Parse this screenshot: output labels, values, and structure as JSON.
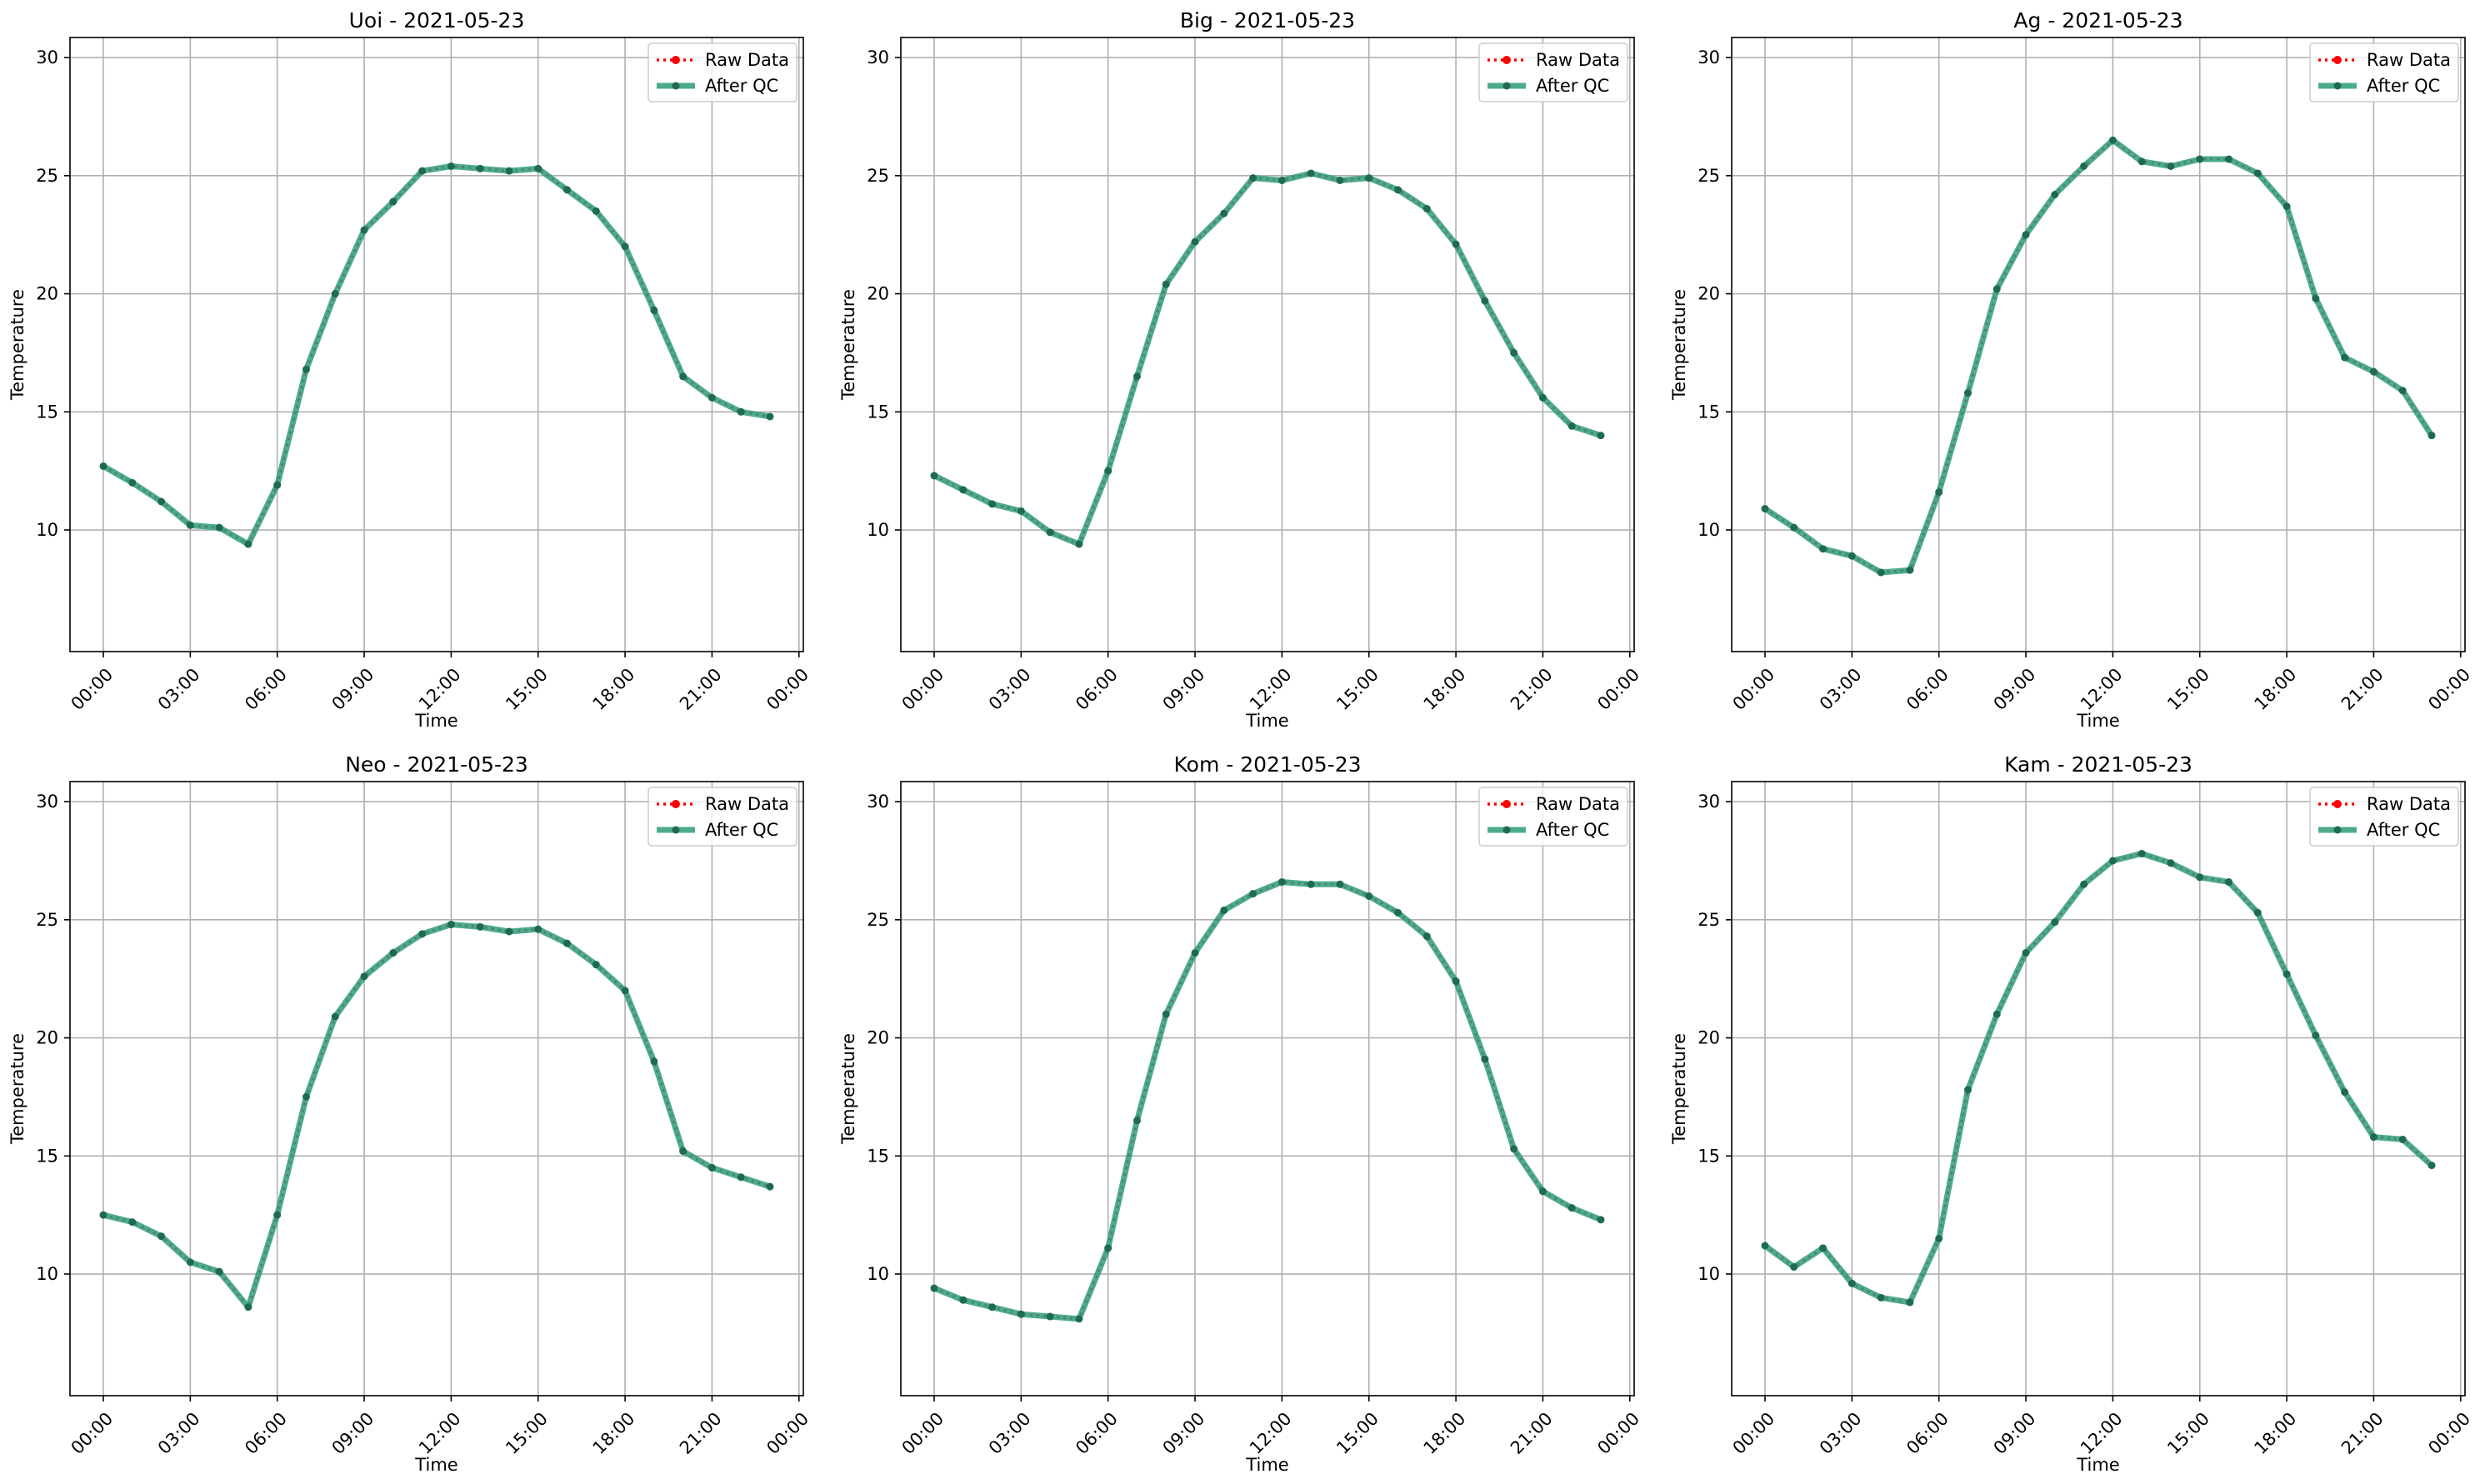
{
  "figure": {
    "background": "#ffffff"
  },
  "style": {
    "raw_color": "#ff0000",
    "qc_color": "#2e9c77",
    "qc_marker_color": "#1f6b52",
    "grid_color": "#b0b0b0",
    "axis_color": "#000000"
  },
  "chart_data": [
    {
      "type": "line",
      "title": "Uoi - 2021-05-23",
      "xlabel": "Time",
      "ylabel": "Temperature",
      "xlim": [
        -1.15,
        24.15
      ],
      "ylim": [
        4.85,
        30.85
      ],
      "xticks": [
        0,
        3,
        6,
        9,
        12,
        15,
        18,
        21,
        24
      ],
      "xtick_labels": [
        "00:00",
        "03:00",
        "06:00",
        "09:00",
        "12:00",
        "15:00",
        "18:00",
        "21:00",
        "00:00"
      ],
      "yticks": [
        10,
        15,
        20,
        25,
        30
      ],
      "ytick_labels": [
        "10",
        "15",
        "20",
        "25",
        "30"
      ],
      "grid": true,
      "legend": {
        "position": "top-right",
        "entries": [
          "Raw Data",
          "After QC"
        ]
      },
      "x": [
        0,
        1,
        2,
        3,
        4,
        5,
        6,
        7,
        8,
        9,
        10,
        11,
        12,
        13,
        14,
        15,
        16,
        17,
        18,
        19,
        20,
        21,
        22,
        23
      ],
      "series": [
        {
          "name": "Raw Data",
          "values": [
            12.7,
            12.0,
            11.2,
            10.2,
            10.1,
            9.4,
            11.9,
            16.8,
            20.0,
            22.7,
            23.9,
            25.2,
            25.4,
            25.3,
            25.2,
            25.3,
            24.4,
            23.5,
            22.0,
            19.3,
            16.5,
            15.6,
            15.0,
            14.8
          ]
        },
        {
          "name": "After QC",
          "values": [
            12.7,
            12.0,
            11.2,
            10.2,
            10.1,
            9.4,
            11.9,
            16.8,
            20.0,
            22.7,
            23.9,
            25.2,
            25.4,
            25.3,
            25.2,
            25.3,
            24.4,
            23.5,
            22.0,
            19.3,
            16.5,
            15.6,
            15.0,
            14.8
          ]
        }
      ]
    },
    {
      "type": "line",
      "title": "Big - 2021-05-23",
      "xlabel": "Time",
      "ylabel": "Temperature",
      "xlim": [
        -1.15,
        24.15
      ],
      "ylim": [
        4.85,
        30.85
      ],
      "xticks": [
        0,
        3,
        6,
        9,
        12,
        15,
        18,
        21,
        24
      ],
      "xtick_labels": [
        "00:00",
        "03:00",
        "06:00",
        "09:00",
        "12:00",
        "15:00",
        "18:00",
        "21:00",
        "00:00"
      ],
      "yticks": [
        10,
        15,
        20,
        25,
        30
      ],
      "ytick_labels": [
        "10",
        "15",
        "20",
        "25",
        "30"
      ],
      "grid": true,
      "legend": {
        "position": "top-right",
        "entries": [
          "Raw Data",
          "After QC"
        ]
      },
      "x": [
        0,
        1,
        2,
        3,
        4,
        5,
        6,
        7,
        8,
        9,
        10,
        11,
        12,
        13,
        14,
        15,
        16,
        17,
        18,
        19,
        20,
        21,
        22,
        23
      ],
      "series": [
        {
          "name": "Raw Data",
          "values": [
            12.3,
            11.7,
            11.1,
            10.8,
            9.9,
            9.4,
            12.5,
            16.5,
            20.4,
            22.2,
            23.4,
            24.9,
            24.8,
            25.1,
            24.8,
            24.9,
            24.4,
            23.6,
            22.1,
            19.7,
            17.5,
            15.6,
            14.4,
            14.0
          ]
        },
        {
          "name": "After QC",
          "values": [
            12.3,
            11.7,
            11.1,
            10.8,
            9.9,
            9.4,
            12.5,
            16.5,
            20.4,
            22.2,
            23.4,
            24.9,
            24.8,
            25.1,
            24.8,
            24.9,
            24.4,
            23.6,
            22.1,
            19.7,
            17.5,
            15.6,
            14.4,
            14.0
          ]
        }
      ]
    },
    {
      "type": "line",
      "title": "Ag - 2021-05-23",
      "xlabel": "Time",
      "ylabel": "Temperature",
      "xlim": [
        -1.15,
        24.15
      ],
      "ylim": [
        4.85,
        30.85
      ],
      "xticks": [
        0,
        3,
        6,
        9,
        12,
        15,
        18,
        21,
        24
      ],
      "xtick_labels": [
        "00:00",
        "03:00",
        "06:00",
        "09:00",
        "12:00",
        "15:00",
        "18:00",
        "21:00",
        "00:00"
      ],
      "yticks": [
        10,
        15,
        20,
        25,
        30
      ],
      "ytick_labels": [
        "10",
        "15",
        "20",
        "25",
        "30"
      ],
      "grid": true,
      "legend": {
        "position": "top-right",
        "entries": [
          "Raw Data",
          "After QC"
        ]
      },
      "x": [
        0,
        1,
        2,
        3,
        4,
        5,
        6,
        7,
        8,
        9,
        10,
        11,
        12,
        13,
        14,
        15,
        16,
        17,
        18,
        19,
        20,
        21,
        22,
        23
      ],
      "series": [
        {
          "name": "Raw Data",
          "values": [
            10.9,
            10.1,
            9.2,
            8.9,
            8.2,
            8.3,
            11.6,
            15.8,
            20.2,
            22.5,
            24.2,
            25.4,
            26.5,
            25.6,
            25.4,
            25.7,
            25.7,
            25.1,
            23.7,
            19.8,
            17.3,
            16.7,
            15.9,
            14.0
          ]
        },
        {
          "name": "After QC",
          "values": [
            10.9,
            10.1,
            9.2,
            8.9,
            8.2,
            8.3,
            11.6,
            15.8,
            20.2,
            22.5,
            24.2,
            25.4,
            26.5,
            25.6,
            25.4,
            25.7,
            25.7,
            25.1,
            23.7,
            19.8,
            17.3,
            16.7,
            15.9,
            14.0
          ]
        }
      ]
    },
    {
      "type": "line",
      "title": "Neo - 2021-05-23",
      "xlabel": "Time",
      "ylabel": "Temperature",
      "xlim": [
        -1.15,
        24.15
      ],
      "ylim": [
        4.85,
        30.85
      ],
      "xticks": [
        0,
        3,
        6,
        9,
        12,
        15,
        18,
        21,
        24
      ],
      "xtick_labels": [
        "00:00",
        "03:00",
        "06:00",
        "09:00",
        "12:00",
        "15:00",
        "18:00",
        "21:00",
        "00:00"
      ],
      "yticks": [
        10,
        15,
        20,
        25,
        30
      ],
      "ytick_labels": [
        "10",
        "15",
        "20",
        "25",
        "30"
      ],
      "grid": true,
      "legend": {
        "position": "top-right",
        "entries": [
          "Raw Data",
          "After QC"
        ]
      },
      "x": [
        0,
        1,
        2,
        3,
        4,
        5,
        6,
        7,
        8,
        9,
        10,
        11,
        12,
        13,
        14,
        15,
        16,
        17,
        18,
        19,
        20,
        21,
        22,
        23
      ],
      "series": [
        {
          "name": "Raw Data",
          "values": [
            12.5,
            12.2,
            11.6,
            10.5,
            10.1,
            8.6,
            12.5,
            17.5,
            20.9,
            22.6,
            23.6,
            24.4,
            24.8,
            24.7,
            24.5,
            24.6,
            24.0,
            23.1,
            22.0,
            19.0,
            15.2,
            14.5,
            14.1,
            13.7
          ]
        },
        {
          "name": "After QC",
          "values": [
            12.5,
            12.2,
            11.6,
            10.5,
            10.1,
            8.6,
            12.5,
            17.5,
            20.9,
            22.6,
            23.6,
            24.4,
            24.8,
            24.7,
            24.5,
            24.6,
            24.0,
            23.1,
            22.0,
            19.0,
            15.2,
            14.5,
            14.1,
            13.7
          ]
        }
      ]
    },
    {
      "type": "line",
      "title": "Kom - 2021-05-23",
      "xlabel": "Time",
      "ylabel": "Temperature",
      "xlim": [
        -1.15,
        24.15
      ],
      "ylim": [
        4.85,
        30.85
      ],
      "xticks": [
        0,
        3,
        6,
        9,
        12,
        15,
        18,
        21,
        24
      ],
      "xtick_labels": [
        "00:00",
        "03:00",
        "06:00",
        "09:00",
        "12:00",
        "15:00",
        "18:00",
        "21:00",
        "00:00"
      ],
      "yticks": [
        10,
        15,
        20,
        25,
        30
      ],
      "ytick_labels": [
        "10",
        "15",
        "20",
        "25",
        "30"
      ],
      "grid": true,
      "legend": {
        "position": "top-right",
        "entries": [
          "Raw Data",
          "After QC"
        ]
      },
      "x": [
        0,
        1,
        2,
        3,
        4,
        5,
        6,
        7,
        8,
        9,
        10,
        11,
        12,
        13,
        14,
        15,
        16,
        17,
        18,
        19,
        20,
        21,
        22,
        23
      ],
      "series": [
        {
          "name": "Raw Data",
          "values": [
            9.4,
            8.9,
            8.6,
            8.3,
            8.2,
            8.1,
            11.1,
            16.5,
            21.0,
            23.6,
            25.4,
            26.1,
            26.6,
            26.5,
            26.5,
            26.0,
            25.3,
            24.3,
            22.4,
            19.1,
            15.3,
            13.5,
            12.8,
            12.3
          ]
        },
        {
          "name": "After QC",
          "values": [
            9.4,
            8.9,
            8.6,
            8.3,
            8.2,
            8.1,
            11.1,
            16.5,
            21.0,
            23.6,
            25.4,
            26.1,
            26.6,
            26.5,
            26.5,
            26.0,
            25.3,
            24.3,
            22.4,
            19.1,
            15.3,
            13.5,
            12.8,
            12.3
          ]
        }
      ]
    },
    {
      "type": "line",
      "title": "Kam - 2021-05-23",
      "xlabel": "Time",
      "ylabel": "Temperature",
      "xlim": [
        -1.15,
        24.15
      ],
      "ylim": [
        4.85,
        30.85
      ],
      "xticks": [
        0,
        3,
        6,
        9,
        12,
        15,
        18,
        21,
        24
      ],
      "xtick_labels": [
        "00:00",
        "03:00",
        "06:00",
        "09:00",
        "12:00",
        "15:00",
        "18:00",
        "21:00",
        "00:00"
      ],
      "yticks": [
        10,
        15,
        20,
        25,
        30
      ],
      "ytick_labels": [
        "10",
        "15",
        "20",
        "25",
        "30"
      ],
      "grid": true,
      "legend": {
        "position": "top-right",
        "entries": [
          "Raw Data",
          "After QC"
        ]
      },
      "x": [
        0,
        1,
        2,
        3,
        4,
        5,
        6,
        7,
        8,
        9,
        10,
        11,
        12,
        13,
        14,
        15,
        16,
        17,
        18,
        19,
        20,
        21,
        22,
        23
      ],
      "series": [
        {
          "name": "Raw Data",
          "values": [
            11.2,
            10.3,
            11.1,
            9.6,
            9.0,
            8.8,
            11.5,
            17.8,
            21.0,
            23.6,
            24.9,
            26.5,
            27.5,
            27.8,
            27.4,
            26.8,
            26.6,
            25.3,
            22.7,
            20.1,
            17.7,
            15.8,
            15.7,
            14.6
          ]
        },
        {
          "name": "After QC",
          "values": [
            11.2,
            10.3,
            11.1,
            9.6,
            9.0,
            8.8,
            11.5,
            17.8,
            21.0,
            23.6,
            24.9,
            26.5,
            27.5,
            27.8,
            27.4,
            26.8,
            26.6,
            25.3,
            22.7,
            20.1,
            17.7,
            15.8,
            15.7,
            14.6
          ]
        }
      ]
    }
  ]
}
